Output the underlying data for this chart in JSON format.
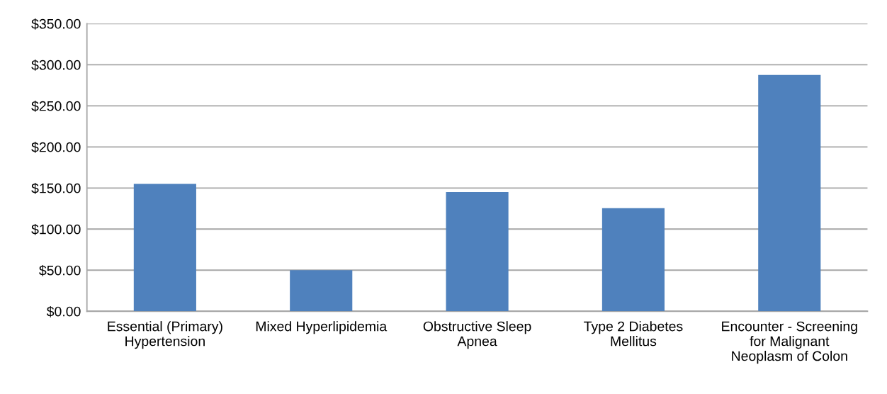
{
  "chart_data": {
    "type": "bar",
    "categories": [
      "Essential (Primary)\nHypertension",
      "Mixed Hyperlipidemia",
      "Obstructive Sleep\nApnea",
      "Type 2 Diabetes\nMellitus",
      "Encounter - Screening\nfor Malignant\nNeoplasm of Colon"
    ],
    "values": [
      155,
      50,
      145,
      125.5,
      287.5
    ],
    "color": "#4f81bd",
    "ylim": [
      0,
      350
    ],
    "yticks": [
      {
        "value": 0,
        "label": "$0.00"
      },
      {
        "value": 50,
        "label": "$50.00"
      },
      {
        "value": 100,
        "label": "$100.00"
      },
      {
        "value": 150,
        "label": "$150.00"
      },
      {
        "value": 200,
        "label": "$200.00"
      },
      {
        "value": 250,
        "label": "$250.00"
      },
      {
        "value": 300,
        "label": "$300.00"
      },
      {
        "value": 350,
        "label": "$350.00"
      }
    ],
    "grid": "y",
    "legend": false
  }
}
